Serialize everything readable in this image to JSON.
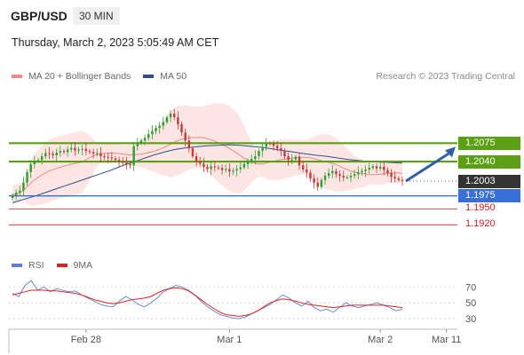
{
  "header": {
    "symbol": "GBP/USD",
    "timeframe": "30 MIN",
    "datetime": "Thursday, March 2, 2023 5:05:49 AM CET"
  },
  "legend": {
    "main": [
      {
        "label": "MA 20 + Bollinger Bands",
        "color": "#f08a80"
      },
      {
        "label": "MA 50",
        "color": "#2d4f8c"
      }
    ],
    "rsi": [
      {
        "label": "RSI",
        "color": "#5b7fd6"
      },
      {
        "label": "9MA",
        "color": "#e02020"
      }
    ]
  },
  "credit": "Research © 2023 Trading Central",
  "colors": {
    "resistance": "#5aa012",
    "support": "#3a6fd8",
    "target": "#d42020",
    "current": "#333333",
    "bull_candle": "#2e9e2e",
    "bear_candle": "#c23a3a",
    "arrow": "#2f5fa8",
    "band_fill": "#fde0de"
  },
  "chart_data": {
    "type": "candlestick",
    "x_axis": {
      "labels": [
        "Feb 28",
        "Mar 1",
        "Mar 2",
        "Mar 11"
      ],
      "label_bars": [
        20,
        59,
        100,
        118
      ],
      "bar_count": 120
    },
    "y_axis": {
      "range": [
        1.1875,
        1.2185
      ]
    },
    "levels": [
      {
        "label": "1.2075",
        "value": 1.2075,
        "kind": "resistance"
      },
      {
        "label": "1.2040",
        "value": 1.204,
        "kind": "resistance"
      },
      {
        "label": "1.2003",
        "value": 1.2003,
        "kind": "current"
      },
      {
        "label": "1.1975",
        "value": 1.1975,
        "kind": "support"
      },
      {
        "label": "1.1950",
        "value": 1.195,
        "kind": "target"
      },
      {
        "label": "1.1920",
        "value": 1.192,
        "kind": "target"
      }
    ],
    "close_series": [
      1.1976,
      1.1981,
      1.1985,
      1.2,
      1.202,
      1.2035,
      1.2041,
      1.2043,
      1.205,
      1.2056,
      1.2055,
      1.2052,
      1.2057,
      1.206,
      1.2058,
      1.2063,
      1.2066,
      1.2061,
      1.2063,
      1.2064,
      1.206,
      1.2058,
      1.2055,
      1.2056,
      1.205,
      1.2049,
      1.2048,
      1.2046,
      1.2043,
      1.204,
      1.2038,
      1.2035,
      1.2033,
      1.2069,
      1.2075,
      1.208,
      1.2085,
      1.2092,
      1.2098,
      1.2104,
      1.2108,
      1.2115,
      1.2124,
      1.2131,
      1.2124,
      1.2111,
      1.2095,
      1.208,
      1.2065,
      1.205,
      1.204,
      1.2036,
      1.203,
      1.2026,
      1.2031,
      1.2029,
      1.2028,
      1.2024,
      1.2026,
      1.2021,
      1.2023,
      1.2026,
      1.2029,
      1.2035,
      1.204,
      1.2045,
      1.205,
      1.206,
      1.2068,
      1.2075,
      1.2074,
      1.207,
      1.2065,
      1.206,
      1.205,
      1.2043,
      1.2044,
      1.2049,
      1.2033,
      1.2025,
      1.2019,
      1.2008,
      1.2,
      1.1992,
      1.2005,
      1.2013,
      1.2018,
      1.2022,
      1.2016,
      1.2013,
      1.201,
      1.201,
      1.2013,
      1.2016,
      1.202,
      1.2022,
      1.2025,
      1.2028,
      1.2031,
      1.2027,
      1.203,
      1.2024,
      1.2018,
      1.2011,
      1.2008,
      1.2005,
      1.2003
    ],
    "ma50_series": [
      1.1962,
      1.1968,
      1.1974,
      1.1981,
      1.1988,
      1.1995,
      1.2002,
      1.2009,
      1.2016,
      1.2023,
      1.2031,
      1.2038,
      1.2045,
      1.2052,
      1.2058,
      1.2063,
      1.2066,
      1.2068,
      1.207,
      1.2071,
      1.2072,
      1.2071,
      1.2069,
      1.2067,
      1.2064,
      1.2061,
      1.2058,
      1.2055,
      1.2052,
      1.205,
      1.2047,
      1.2044,
      1.2042,
      1.204,
      1.2039,
      1.2038,
      1.2037
    ],
    "rsi": {
      "yticks": [
        70,
        50,
        30
      ],
      "range": [
        20,
        85
      ],
      "rsi_series": [
        62,
        58,
        72,
        78,
        66,
        70,
        64,
        68,
        66,
        64,
        65,
        60,
        56,
        52,
        48,
        46,
        45,
        52,
        58,
        54,
        48,
        45,
        50,
        56,
        64,
        68,
        72,
        70,
        66,
        60,
        52,
        45,
        40,
        35,
        33,
        31,
        30,
        32,
        36,
        40,
        44,
        48,
        54,
        60,
        56,
        50,
        46,
        52,
        44,
        40,
        42,
        38,
        44,
        50,
        46,
        44,
        46,
        48,
        50,
        47,
        44,
        40,
        42
      ],
      "ma9_series": [
        60,
        62,
        64,
        66,
        66,
        66,
        65,
        65,
        64,
        63,
        62,
        60,
        57,
        54,
        52,
        50,
        49,
        50,
        52,
        54,
        55,
        56,
        58,
        62,
        66,
        68,
        69,
        68,
        65,
        60,
        54,
        48,
        43,
        38,
        35,
        34,
        33,
        34,
        36,
        40,
        45,
        50,
        53,
        55,
        54,
        52,
        50,
        48,
        47,
        46,
        45,
        44,
        45,
        46,
        47,
        47,
        47,
        47,
        47,
        47,
        46,
        45,
        44
      ]
    }
  }
}
